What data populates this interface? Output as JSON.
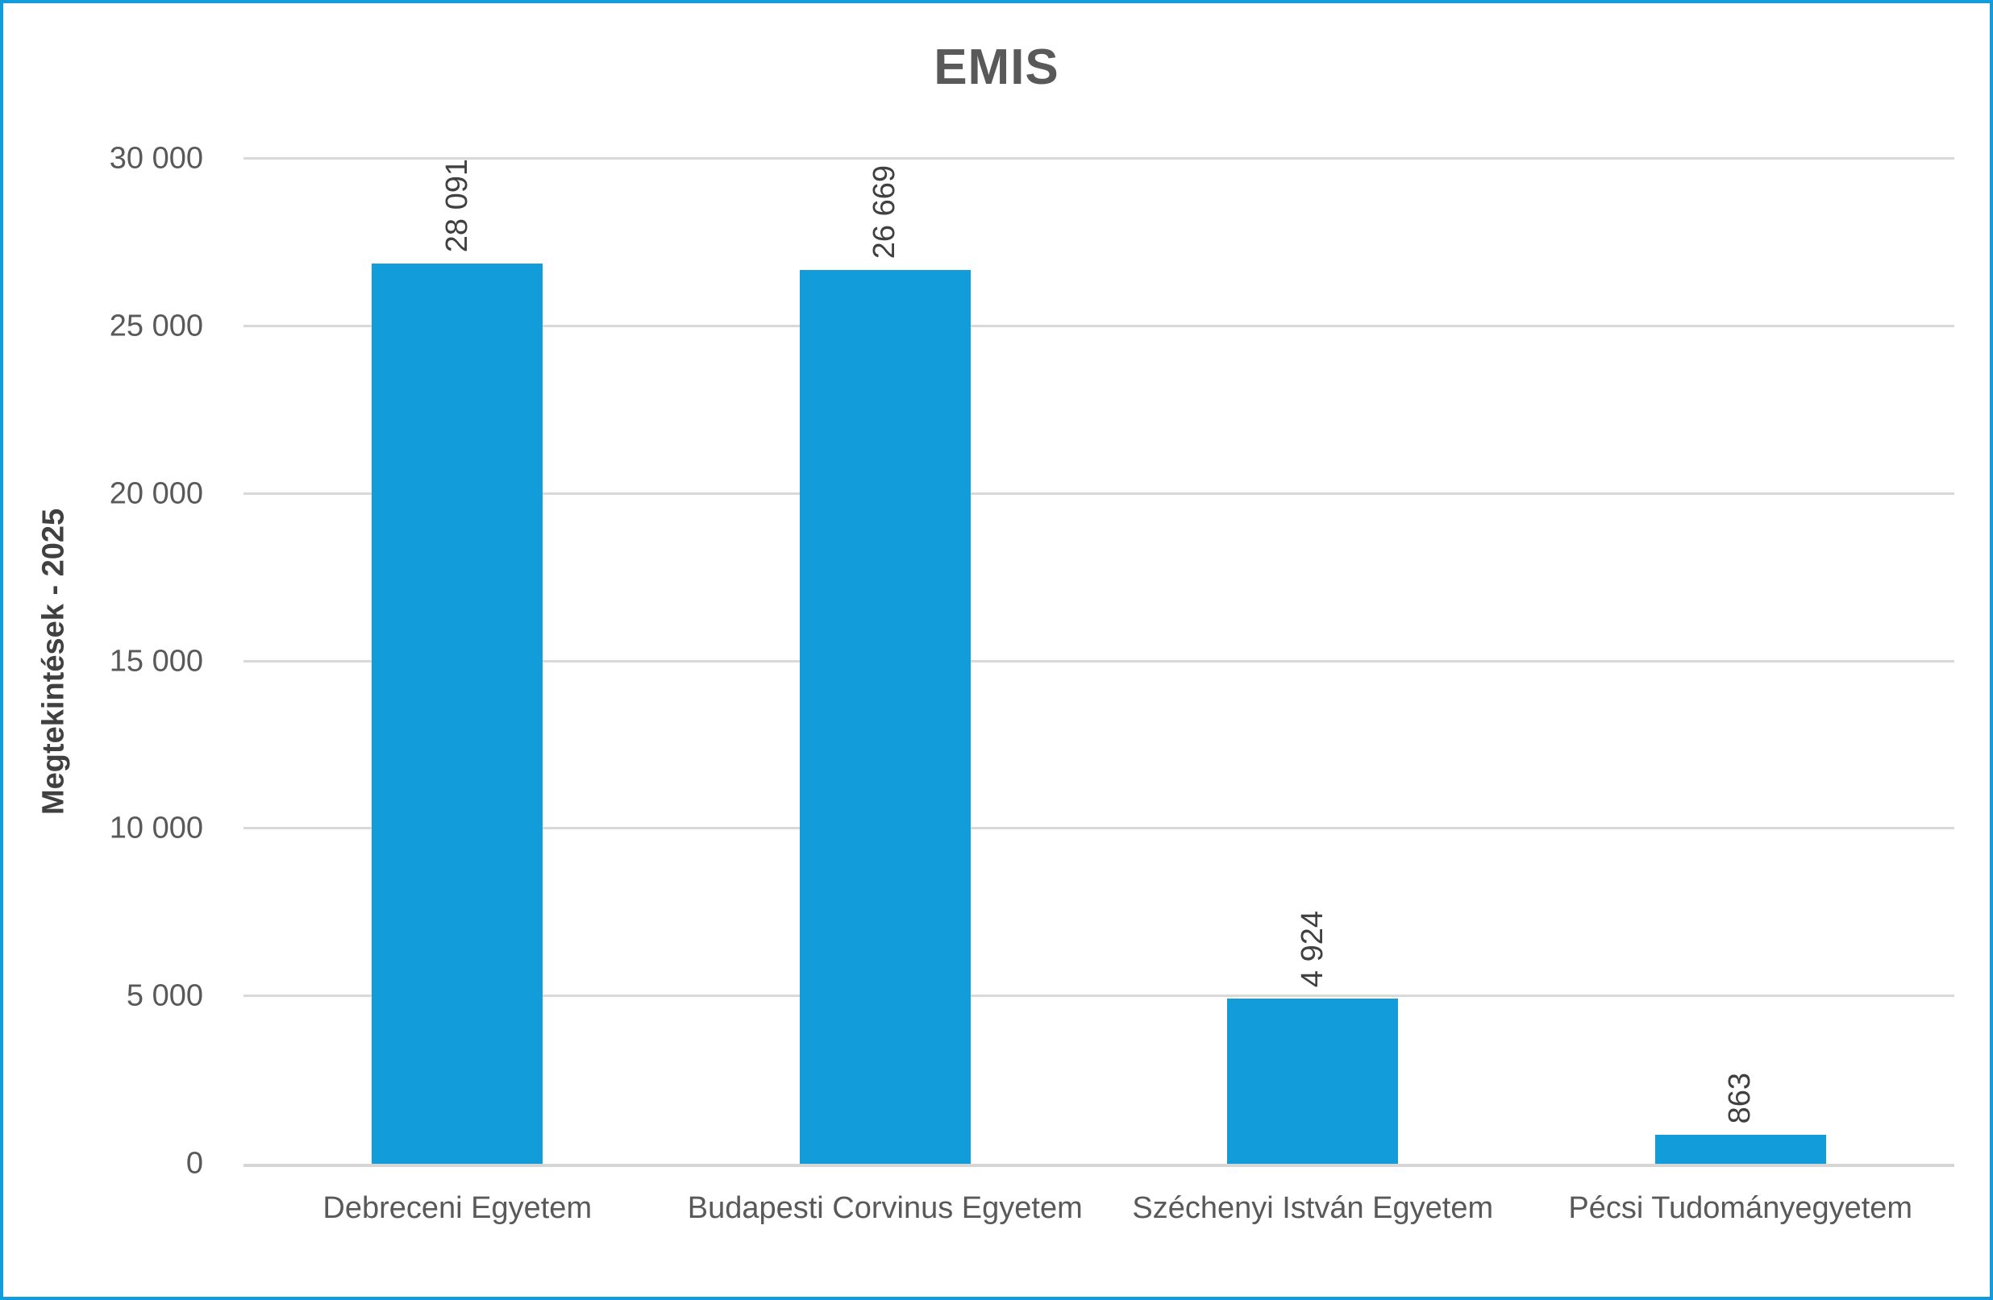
{
  "chart_data": {
    "type": "bar",
    "title": "EMIS",
    "xlabel": "",
    "ylabel": "Megtekintések - 2025",
    "categories": [
      "Debreceni Egyetem",
      "Budapesti Corvinus Egyetem",
      "Széchenyi István Egyetem",
      "Pécsi Tudományegyetem"
    ],
    "values": [
      28091,
      26669,
      4924,
      863
    ],
    "data_labels": [
      "28 091",
      "26 669",
      "4 924",
      "863"
    ],
    "y_ticks": [
      "0",
      "5 000",
      "10 000",
      "15 000",
      "20 000",
      "25 000",
      "30 000"
    ],
    "y_tick_values": [
      0,
      5000,
      10000,
      15000,
      20000,
      25000,
      30000
    ],
    "ylim": [
      0,
      30000
    ],
    "grid": "horizontal",
    "legend_position": "none",
    "data_label_orientation": "rotated-90",
    "colors": {
      "bar": "#129CD9",
      "frame_border": "#129CD9",
      "gridline": "#D9D9D9",
      "axis_line": "#D6D6D6",
      "title_text": "#595959",
      "tick_text": "#595959",
      "data_label_text": "#404040"
    }
  }
}
